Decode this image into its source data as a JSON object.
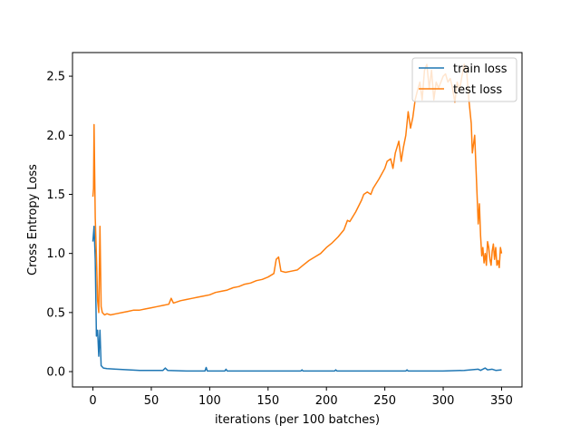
{
  "chart_data": {
    "type": "line",
    "title": "",
    "xlabel": "iterations (per 100 batches)",
    "ylabel": "Cross Entropy Loss",
    "xlim": [
      -17.5,
      367.5
    ],
    "ylim": [
      -0.13,
      2.7
    ],
    "xticks": [
      0,
      50,
      100,
      150,
      200,
      250,
      300,
      350
    ],
    "yticks": [
      0.0,
      0.5,
      1.0,
      1.5,
      2.0,
      2.5
    ],
    "xtick_labels": [
      "0",
      "50",
      "100",
      "150",
      "200",
      "250",
      "300",
      "350"
    ],
    "ytick_labels": [
      "0.0",
      "0.5",
      "1.0",
      "1.5",
      "2.0",
      "2.5"
    ],
    "grid": false,
    "legend_position": "upper right",
    "series": [
      {
        "name": "train loss",
        "color": "#1f77b4",
        "points": [
          [
            0,
            1.1
          ],
          [
            1,
            1.23
          ],
          [
            2,
            0.95
          ],
          [
            3,
            0.3
          ],
          [
            4,
            0.35
          ],
          [
            5,
            0.13
          ],
          [
            6,
            0.35
          ],
          [
            7,
            0.05
          ],
          [
            9,
            0.03
          ],
          [
            12,
            0.025
          ],
          [
            20,
            0.02
          ],
          [
            40,
            0.01
          ],
          [
            60,
            0.01
          ],
          [
            62,
            0.03
          ],
          [
            64,
            0.01
          ],
          [
            80,
            0.005
          ],
          [
            96,
            0.005
          ],
          [
            97,
            0.035
          ],
          [
            98,
            0.005
          ],
          [
            113,
            0.005
          ],
          [
            114,
            0.02
          ],
          [
            115,
            0.005
          ],
          [
            150,
            0.005
          ],
          [
            178,
            0.005
          ],
          [
            179,
            0.015
          ],
          [
            180,
            0.005
          ],
          [
            207,
            0.005
          ],
          [
            208,
            0.015
          ],
          [
            209,
            0.005
          ],
          [
            250,
            0.005
          ],
          [
            268,
            0.005
          ],
          [
            269,
            0.015
          ],
          [
            270,
            0.005
          ],
          [
            300,
            0.005
          ],
          [
            318,
            0.01
          ],
          [
            330,
            0.02
          ],
          [
            332,
            0.01
          ],
          [
            336,
            0.03
          ],
          [
            338,
            0.015
          ],
          [
            342,
            0.02
          ],
          [
            345,
            0.01
          ],
          [
            350,
            0.015
          ]
        ]
      },
      {
        "name": "test loss",
        "color": "#ff7f0e",
        "points": [
          [
            0,
            1.48
          ],
          [
            0.5,
            1.55
          ],
          [
            1,
            2.09
          ],
          [
            2,
            1.3
          ],
          [
            3,
            0.98
          ],
          [
            4,
            0.6
          ],
          [
            5,
            0.5
          ],
          [
            6,
            1.23
          ],
          [
            7,
            0.55
          ],
          [
            8,
            0.5
          ],
          [
            10,
            0.48
          ],
          [
            12,
            0.49
          ],
          [
            15,
            0.48
          ],
          [
            20,
            0.49
          ],
          [
            25,
            0.5
          ],
          [
            30,
            0.51
          ],
          [
            35,
            0.52
          ],
          [
            40,
            0.52
          ],
          [
            45,
            0.53
          ],
          [
            50,
            0.54
          ],
          [
            55,
            0.55
          ],
          [
            60,
            0.56
          ],
          [
            65,
            0.57
          ],
          [
            67,
            0.62
          ],
          [
            69,
            0.58
          ],
          [
            75,
            0.6
          ],
          [
            80,
            0.61
          ],
          [
            85,
            0.62
          ],
          [
            90,
            0.63
          ],
          [
            95,
            0.64
          ],
          [
            100,
            0.65
          ],
          [
            105,
            0.67
          ],
          [
            110,
            0.68
          ],
          [
            115,
            0.69
          ],
          [
            120,
            0.71
          ],
          [
            125,
            0.72
          ],
          [
            130,
            0.74
          ],
          [
            135,
            0.75
          ],
          [
            140,
            0.77
          ],
          [
            145,
            0.78
          ],
          [
            150,
            0.8
          ],
          [
            155,
            0.83
          ],
          [
            157,
            0.95
          ],
          [
            159,
            0.97
          ],
          [
            161,
            0.85
          ],
          [
            165,
            0.84
          ],
          [
            170,
            0.85
          ],
          [
            175,
            0.86
          ],
          [
            180,
            0.9
          ],
          [
            185,
            0.94
          ],
          [
            190,
            0.97
          ],
          [
            195,
            1.0
          ],
          [
            200,
            1.05
          ],
          [
            205,
            1.09
          ],
          [
            210,
            1.14
          ],
          [
            215,
            1.2
          ],
          [
            218,
            1.28
          ],
          [
            220,
            1.27
          ],
          [
            225,
            1.35
          ],
          [
            230,
            1.45
          ],
          [
            232,
            1.5
          ],
          [
            235,
            1.52
          ],
          [
            238,
            1.5
          ],
          [
            240,
            1.55
          ],
          [
            245,
            1.63
          ],
          [
            250,
            1.72
          ],
          [
            252,
            1.78
          ],
          [
            255,
            1.8
          ],
          [
            257,
            1.72
          ],
          [
            259,
            1.85
          ],
          [
            262,
            1.95
          ],
          [
            264,
            1.78
          ],
          [
            266,
            1.9
          ],
          [
            268,
            2.0
          ],
          [
            270,
            2.2
          ],
          [
            272,
            2.06
          ],
          [
            274,
            2.15
          ],
          [
            276,
            2.3
          ],
          [
            278,
            2.38
          ],
          [
            280,
            2.45
          ],
          [
            282,
            2.3
          ],
          [
            284,
            2.55
          ],
          [
            286,
            2.6
          ],
          [
            288,
            2.4
          ],
          [
            290,
            2.55
          ],
          [
            292,
            2.3
          ],
          [
            294,
            2.45
          ],
          [
            296,
            2.4
          ],
          [
            298,
            2.45
          ],
          [
            300,
            2.5
          ],
          [
            302,
            2.52
          ],
          [
            304,
            2.45
          ],
          [
            306,
            2.48
          ],
          [
            308,
            2.4
          ],
          [
            310,
            2.28
          ],
          [
            312,
            2.45
          ],
          [
            314,
            2.38
          ],
          [
            316,
            2.5
          ],
          [
            318,
            2.6
          ],
          [
            320,
            2.55
          ],
          [
            322,
            2.3
          ],
          [
            324,
            2.1
          ],
          [
            325,
            1.85
          ],
          [
            327,
            2.0
          ],
          [
            328,
            1.75
          ],
          [
            329,
            1.5
          ],
          [
            330,
            1.25
          ],
          [
            331,
            1.42
          ],
          [
            332,
            1.15
          ],
          [
            333,
            0.98
          ],
          [
            334,
            1.05
          ],
          [
            335,
            0.92
          ],
          [
            336,
            1.0
          ],
          [
            337,
            0.9
          ],
          [
            338,
            1.1
          ],
          [
            339,
            1.05
          ],
          [
            340,
            0.95
          ],
          [
            341,
            0.9
          ],
          [
            342,
            1.02
          ],
          [
            343,
            1.08
          ],
          [
            344,
            0.95
          ],
          [
            345,
            1.05
          ],
          [
            346,
            0.9
          ],
          [
            347,
            0.94
          ],
          [
            348,
            0.88
          ],
          [
            349,
            1.05
          ],
          [
            350,
            1.0
          ]
        ]
      }
    ]
  }
}
